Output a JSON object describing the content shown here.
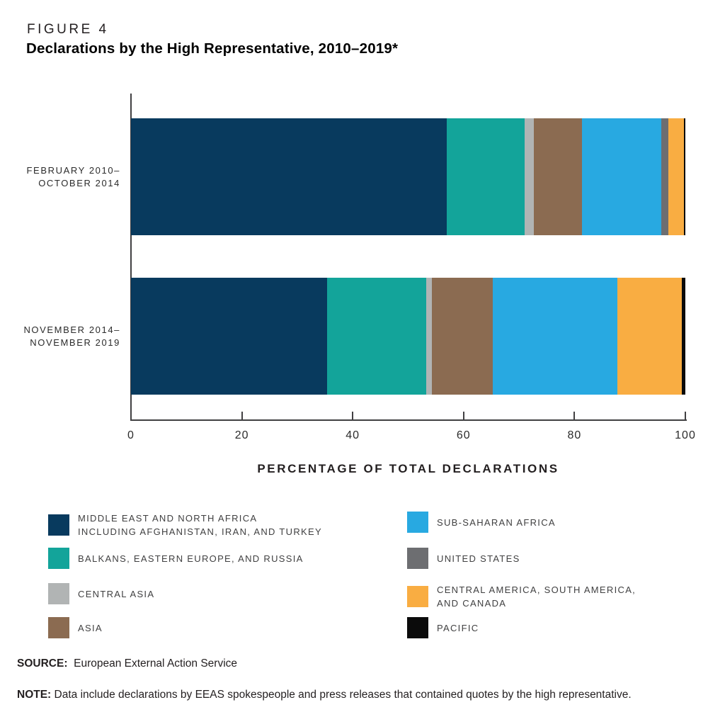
{
  "header": {
    "figure_label": "FIGURE 4",
    "title": "Declarations by the High Representative, 2010–2019*"
  },
  "chart_data": {
    "type": "bar",
    "stacked": true,
    "orientation": "horizontal",
    "title": "Declarations by the High Representative, 2010–2019*",
    "xlabel": "PERCENTAGE OF TOTAL DECLARATIONS",
    "xlim": [
      0,
      100
    ],
    "xticks": [
      0,
      20,
      40,
      60,
      80,
      100
    ],
    "grid": false,
    "legend_position": "bottom",
    "categories": [
      "FEBRUARY 2010–\nOCTOBER 2014",
      "NOVEMBER 2014–\nNOVEMBER 2019"
    ],
    "series": [
      {
        "name": "MIDDLE EAST AND NORTH AFRICA INCLUDING AFGHANISTAN, IRAN, AND TURKEY",
        "color": "#083a5e",
        "values": [
          56.9,
          35.4
        ]
      },
      {
        "name": "BALKANS, EASTERN EUROPE, AND RUSSIA",
        "color": "#13a49a",
        "values": [
          14.1,
          17.9
        ]
      },
      {
        "name": "CENTRAL ASIA",
        "color": "#b1b4b4",
        "values": [
          1.7,
          1.0
        ]
      },
      {
        "name": "ASIA",
        "color": "#8b6b51",
        "values": [
          8.7,
          10.9
        ]
      },
      {
        "name": "SUB-SAHARAN AFRICA",
        "color": "#28a9e1",
        "values": [
          14.3,
          22.5
        ]
      },
      {
        "name": "UNITED STATES",
        "color": "#6d6e71",
        "values": [
          1.3,
          0.0
        ]
      },
      {
        "name": "CENTRAL AMERICA, SOUTH AMERICA, AND CANADA",
        "color": "#f9ad42",
        "values": [
          2.8,
          11.7
        ]
      },
      {
        "name": "PACIFIC",
        "color": "#0b0b0b",
        "values": [
          0.2,
          0.6
        ]
      }
    ]
  },
  "legend": {
    "columns": [
      [
        {
          "label": "MIDDLE EAST AND NORTH AFRICA\nINCLUDING AFGHANISTAN, IRAN, AND TURKEY",
          "color": "#083a5e"
        },
        {
          "label": "BALKANS, EASTERN EUROPE, AND RUSSIA",
          "color": "#13a49a"
        },
        {
          "label": "CENTRAL ASIA",
          "color": "#b1b4b4"
        },
        {
          "label": "ASIA",
          "color": "#8b6b51"
        }
      ],
      [
        {
          "label": "SUB-SAHARAN AFRICA",
          "color": "#28a9e1"
        },
        {
          "label": "UNITED STATES",
          "color": "#6d6e71"
        },
        {
          "label": "CENTRAL AMERICA, SOUTH AMERICA,\nAND CANADA",
          "color": "#f9ad42"
        },
        {
          "label": "PACIFIC",
          "color": "#0b0b0b"
        }
      ]
    ]
  },
  "footer": {
    "source_label": "SOURCE:",
    "source_text": "European External Action Service",
    "note_label": "NOTE:",
    "note_text": "Data include declarations by EEAS spokespeople and press releases that contained quotes by the high representative."
  },
  "colors": {
    "axis": "#414042",
    "text": "#231f20",
    "background": "#ffffff"
  }
}
